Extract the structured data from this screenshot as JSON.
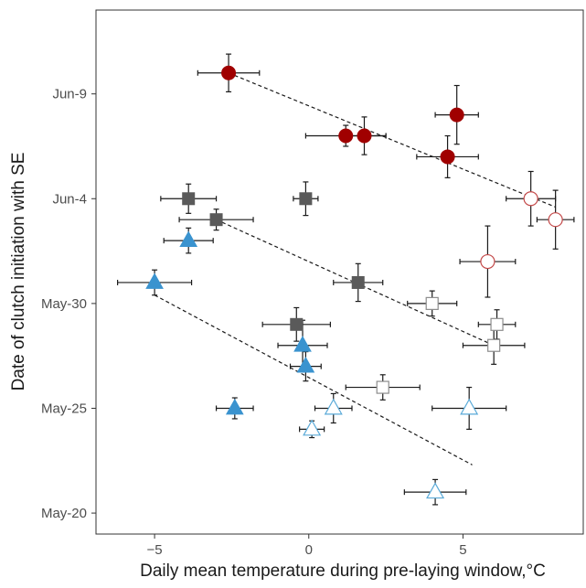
{
  "chart_data": {
    "type": "scatter",
    "title": "",
    "xlabel": "Daily mean temperature during pre-laying window,°C",
    "ylabel": "Date of clutch initiation with SE",
    "xlim": [
      -6.9,
      8.9
    ],
    "ylim": [
      "May-19",
      "Jun-13"
    ],
    "x_ticks": [
      -5,
      0,
      5
    ],
    "y_ticks": [
      "May-20",
      "May-25",
      "May-30",
      "Jun-4",
      "Jun-9"
    ],
    "grid": false,
    "legend": "none",
    "colors": {
      "red": "#a00000",
      "red_open": "#c44a4a",
      "gray": "#5a5a5a",
      "gray_open": "#8c8c8c",
      "blue": "#3a93cf",
      "blue_open": "#5aaad8",
      "error_bar": "#1a1a1a",
      "trend": "#1a1a1a"
    },
    "series": [
      {
        "marker": "circle",
        "color": "red",
        "filled": true,
        "points": [
          {
            "x": -2.6,
            "y": "Jun-10",
            "xerr": 1.0,
            "yerr": 0.9
          },
          {
            "x": 1.2,
            "y": "Jun-7",
            "xerr": 1.3,
            "yerr": 0.5
          },
          {
            "x": 1.8,
            "y": "Jun-7",
            "xerr": 0.7,
            "yerr": 0.9
          },
          {
            "x": 4.8,
            "y": "Jun-8",
            "xerr": 0.7,
            "yerr": 1.4
          },
          {
            "x": 4.5,
            "y": "Jun-6",
            "xerr": 1.0,
            "yerr": 1.0
          }
        ],
        "trend": {
          "x": [
            -2.6,
            8.0
          ],
          "y": [
            "Jun-10",
            "Jun-3.6"
          ]
        }
      },
      {
        "marker": "circle",
        "color": "red_open",
        "filled": false,
        "points": [
          {
            "x": 7.2,
            "y": "Jun-4",
            "xerr": 0.8,
            "yerr": 1.3
          },
          {
            "x": 8.0,
            "y": "Jun-3",
            "xerr": 0.6,
            "yerr": 1.4
          },
          {
            "x": 5.8,
            "y": "Jun-1",
            "xerr": 0.9,
            "yerr": 1.7
          }
        ]
      },
      {
        "marker": "square",
        "color": "gray",
        "filled": true,
        "points": [
          {
            "x": -3.9,
            "y": "Jun-4",
            "xerr": 0.9,
            "yerr": 0.7
          },
          {
            "x": -0.1,
            "y": "Jun-4",
            "xerr": 0.4,
            "yerr": 0.8
          },
          {
            "x": -3.0,
            "y": "Jun-3",
            "xerr": 1.2,
            "yerr": 0.5
          },
          {
            "x": 1.6,
            "y": "May-31",
            "xerr": 0.8,
            "yerr": 0.9
          },
          {
            "x": -0.4,
            "y": "May-29",
            "xerr": 1.1,
            "yerr": 0.8
          }
        ],
        "trend": {
          "x": [
            -3.0,
            6.0
          ],
          "y": [
            "Jun-3",
            "May-28"
          ]
        }
      },
      {
        "marker": "square",
        "color": "gray_open",
        "filled": false,
        "points": [
          {
            "x": 4.0,
            "y": "May-30",
            "xerr": 0.8,
            "yerr": 0.6
          },
          {
            "x": 6.1,
            "y": "May-29",
            "xerr": 0.6,
            "yerr": 0.7
          },
          {
            "x": 6.0,
            "y": "May-28",
            "xerr": 1.0,
            "yerr": 0.9
          },
          {
            "x": 2.4,
            "y": "May-26",
            "xerr": 1.2,
            "yerr": 0.6
          }
        ]
      },
      {
        "marker": "triangle",
        "color": "blue",
        "filled": true,
        "points": [
          {
            "x": -3.9,
            "y": "Jun-2",
            "xerr": 0.8,
            "yerr": 0.6
          },
          {
            "x": -5.0,
            "y": "May-31",
            "xerr": 1.2,
            "yerr": 0.6
          },
          {
            "x": -0.2,
            "y": "May-28",
            "xerr": 0.8,
            "yerr": 1.2
          },
          {
            "x": -0.1,
            "y": "May-27",
            "xerr": 0.5,
            "yerr": 0.7
          },
          {
            "x": -2.4,
            "y": "May-25",
            "xerr": 0.6,
            "yerr": 0.5
          }
        ],
        "trend": {
          "x": [
            -5.0,
            5.3
          ],
          "y": [
            "May-30.4",
            "May-22.3"
          ]
        }
      },
      {
        "marker": "triangle",
        "color": "blue_open",
        "filled": false,
        "points": [
          {
            "x": 0.8,
            "y": "May-25",
            "xerr": 0.6,
            "yerr": 0.7
          },
          {
            "x": 5.2,
            "y": "May-25",
            "xerr": 1.2,
            "yerr": 1.0
          },
          {
            "x": 0.1,
            "y": "May-24",
            "xerr": 0.4,
            "yerr": 0.4
          },
          {
            "x": 4.1,
            "y": "May-21",
            "xerr": 1.0,
            "yerr": 0.6
          }
        ]
      }
    ]
  }
}
